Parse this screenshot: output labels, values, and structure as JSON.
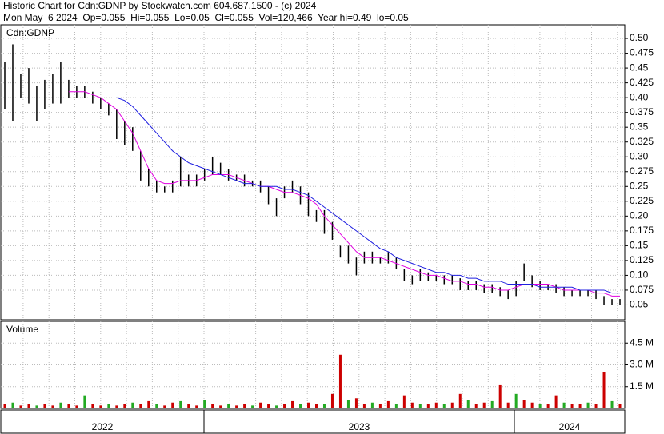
{
  "header": {
    "title": "Historic Chart for Cdn:GDNP by Stockwatch.com 604.687.1500 - (c) 2024",
    "subtitle": "Mon May  6 2024  Op=0.055  Hi=0.055  Lo=0.05  Cl=0.055  Vol=120,466  Year hi=0.49  lo=0.05"
  },
  "chart_data": [
    {
      "type": "hilo",
      "title": "Cdn:GDNP",
      "color": "#000000",
      "grid": true,
      "high": [
        0.46,
        0.49,
        0.44,
        0.45,
        0.42,
        0.43,
        0.44,
        0.46,
        0.43,
        0.42,
        0.42,
        0.41,
        0.4,
        0.39,
        0.38,
        0.36,
        0.35,
        0.31,
        0.28,
        0.26,
        0.25,
        0.26,
        0.3,
        0.27,
        0.27,
        0.28,
        0.3,
        0.29,
        0.28,
        0.27,
        0.27,
        0.26,
        0.26,
        0.25,
        0.23,
        0.25,
        0.26,
        0.25,
        0.24,
        0.21,
        0.21,
        0.19,
        0.15,
        0.15,
        0.13,
        0.14,
        0.14,
        0.13,
        0.14,
        0.13,
        0.11,
        0.1,
        0.11,
        0.105,
        0.1,
        0.1,
        0.1,
        0.095,
        0.09,
        0.09,
        0.085,
        0.085,
        0.08,
        0.075,
        0.09,
        0.12,
        0.1,
        0.09,
        0.085,
        0.085,
        0.08,
        0.075,
        0.075,
        0.075,
        0.075,
        0.065,
        0.06,
        0.06
      ],
      "low": [
        0.38,
        0.36,
        0.4,
        0.39,
        0.36,
        0.38,
        0.39,
        0.39,
        0.4,
        0.4,
        0.4,
        0.39,
        0.38,
        0.37,
        0.33,
        0.32,
        0.31,
        0.26,
        0.25,
        0.24,
        0.24,
        0.24,
        0.25,
        0.25,
        0.25,
        0.26,
        0.27,
        0.27,
        0.26,
        0.26,
        0.25,
        0.25,
        0.24,
        0.22,
        0.2,
        0.23,
        0.24,
        0.22,
        0.2,
        0.19,
        0.17,
        0.16,
        0.13,
        0.12,
        0.1,
        0.12,
        0.12,
        0.12,
        0.12,
        0.11,
        0.09,
        0.085,
        0.09,
        0.09,
        0.09,
        0.085,
        0.085,
        0.075,
        0.075,
        0.075,
        0.07,
        0.07,
        0.065,
        0.06,
        0.065,
        0.09,
        0.08,
        0.075,
        0.075,
        0.07,
        0.065,
        0.065,
        0.065,
        0.065,
        0.06,
        0.05,
        0.05,
        0.05
      ],
      "averages": [
        {
          "color": "#e000e0",
          "values": [
            null,
            null,
            null,
            null,
            null,
            null,
            null,
            null,
            0.41,
            0.41,
            0.41,
            0.405,
            0.4,
            0.39,
            0.38,
            0.36,
            0.34,
            0.31,
            0.28,
            0.26,
            0.255,
            0.255,
            0.26,
            0.26,
            0.26,
            0.265,
            0.27,
            0.27,
            0.27,
            0.265,
            0.26,
            0.255,
            0.25,
            0.25,
            0.245,
            0.24,
            0.24,
            0.235,
            0.23,
            0.22,
            0.2,
            0.185,
            0.17,
            0.155,
            0.14,
            0.13,
            0.13,
            0.13,
            0.125,
            0.12,
            0.115,
            0.11,
            0.105,
            0.1,
            0.1,
            0.095,
            0.09,
            0.09,
            0.085,
            0.085,
            0.08,
            0.08,
            0.075,
            0.075,
            0.08,
            0.085,
            0.085,
            0.085,
            0.085,
            0.08,
            0.075,
            0.075,
            0.075,
            0.075,
            0.07,
            0.07,
            0.065,
            0.065
          ]
        },
        {
          "color": "#2020e0",
          "values": [
            null,
            null,
            null,
            null,
            null,
            null,
            null,
            null,
            null,
            null,
            null,
            null,
            null,
            null,
            0.4,
            0.395,
            0.385,
            0.37,
            0.355,
            0.34,
            0.325,
            0.31,
            0.3,
            0.29,
            0.285,
            0.28,
            0.275,
            0.27,
            0.265,
            0.26,
            0.255,
            0.255,
            0.25,
            0.25,
            0.25,
            0.245,
            0.245,
            0.24,
            0.235,
            0.225,
            0.215,
            0.205,
            0.195,
            0.185,
            0.175,
            0.165,
            0.155,
            0.145,
            0.14,
            0.13,
            0.125,
            0.12,
            0.115,
            0.11,
            0.105,
            0.105,
            0.1,
            0.1,
            0.095,
            0.095,
            0.09,
            0.09,
            0.09,
            0.085,
            0.085,
            0.085,
            0.085,
            0.08,
            0.08,
            0.08,
            0.08,
            0.08,
            0.075,
            0.075,
            0.075,
            0.075,
            0.07,
            0.07
          ]
        }
      ],
      "ylim": [
        0.025,
        0.523
      ],
      "yticks": [
        0.05,
        0.075,
        {
          "value": 0.1,
          "label": "0.10"
        },
        0.125,
        0.15,
        0.175,
        {
          "value": 0.2,
          "label": "0.20"
        },
        0.225,
        0.25,
        0.275,
        {
          "value": 0.3,
          "label": "0.30"
        },
        0.325,
        0.35,
        0.375,
        {
          "value": 0.4,
          "label": "0.40"
        },
        0.425,
        0.45,
        0.475,
        {
          "value": 0.5,
          "label": "0.50"
        }
      ]
    },
    {
      "type": "bar",
      "title": "Volume",
      "color": "#cc0000",
      "grid": true,
      "values": [
        0.3,
        0.4,
        0.2,
        0.3,
        0.2,
        0.3,
        0.2,
        0.4,
        0.3,
        0.2,
        0.9,
        0.3,
        0.2,
        0.3,
        0.2,
        0.3,
        0.4,
        0.3,
        0.5,
        0.3,
        0.2,
        0.4,
        0.5,
        0.3,
        0.2,
        0.6,
        0.3,
        0.2,
        0.3,
        0.2,
        0.3,
        0.2,
        0.4,
        0.3,
        0.2,
        0.3,
        0.5,
        0.3,
        0.4,
        0.3,
        0.3,
        1.0,
        3.7,
        0.6,
        0.7,
        0.3,
        0.4,
        0.3,
        0.5,
        0.3,
        0.9,
        0.4,
        0.3,
        0.3,
        0.4,
        0.3,
        0.4,
        1.0,
        0.6,
        0.3,
        0.4,
        0.5,
        1.6,
        0.4,
        1.0,
        0.6,
        0.4,
        0.3,
        0.3,
        0.9,
        0.4,
        0.3,
        0.3,
        0.4,
        0.3,
        2.5,
        0.5,
        0.3
      ],
      "ylim": [
        0,
        6
      ],
      "yticks": [
        {
          "value": 1.5,
          "label": "1.5 M"
        },
        {
          "value": 3,
          "label": "3.0 M"
        },
        {
          "value": 4.5,
          "label": "4.5 M"
        }
      ],
      "x_labels": [
        "2022",
        "2023",
        "2024"
      ]
    }
  ]
}
